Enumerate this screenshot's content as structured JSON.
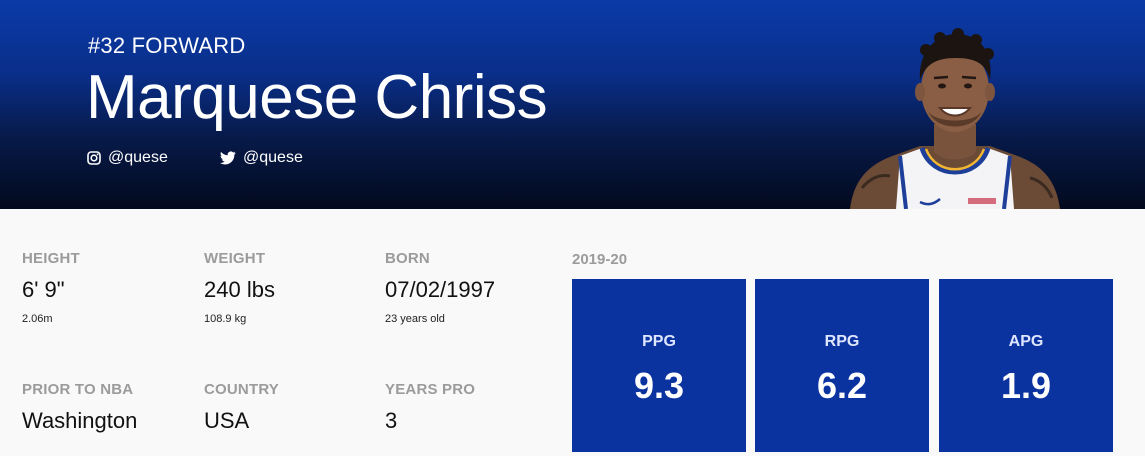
{
  "player": {
    "position_line": "#32 FORWARD",
    "name": "Marquese Chriss",
    "instagram": "@quese",
    "twitter": "@quese"
  },
  "bio": {
    "height": {
      "label": "HEIGHT",
      "value": "6' 9\"",
      "sub": "2.06m"
    },
    "weight": {
      "label": "WEIGHT",
      "value": "240 lbs",
      "sub": "108.9 kg"
    },
    "born": {
      "label": "BORN",
      "value": "07/02/1997",
      "sub": "23 years old"
    },
    "prior": {
      "label": "PRIOR TO NBA",
      "value": "Washington"
    },
    "country": {
      "label": "COUNTRY",
      "value": "USA"
    },
    "years_pro": {
      "label": "YEARS PRO",
      "value": "3"
    }
  },
  "season": {
    "label": "2019-20",
    "stats": [
      {
        "label": "PPG",
        "value": "9.3"
      },
      {
        "label": "RPG",
        "value": "6.2"
      },
      {
        "label": "APG",
        "value": "1.9"
      }
    ]
  },
  "colors": {
    "accent_blue": "#0b33a0",
    "hero_dark": "#030a1e",
    "label_gray": "#9b9b9b"
  },
  "icons": {
    "instagram": "instagram-icon",
    "twitter": "twitter-icon",
    "headshot": "player-headshot"
  }
}
